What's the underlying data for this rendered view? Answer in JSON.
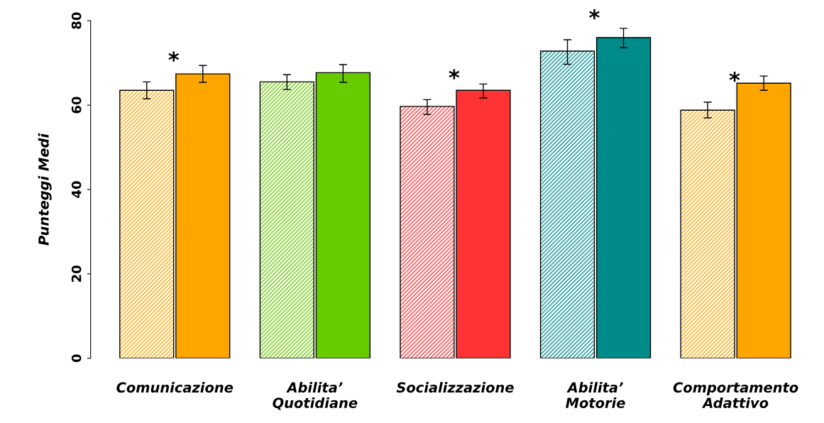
{
  "chart_data": {
    "type": "bar",
    "ylabel": "Punteggi Medi",
    "categories": [
      "Comunicazione",
      "Abilita’\nQuotidiane",
      "Socializzazione",
      "Abilita’\nMotorie",
      "Comportamento\nAdattivo"
    ],
    "series": [
      {
        "colors": [
          "#ffa500",
          "#66cc00",
          "#ff3333",
          "#008b8b",
          "#ffa500"
        ],
        "values": [
          63.5,
          65.5,
          59.7,
          72.8,
          58.8
        ],
        "value_labels": [
          "*",
          null,
          "*",
          "*",
          "*"
        ],
        "errors": [
          [
            61.5,
            65.5
          ],
          [
            63.7,
            67.2
          ],
          [
            57.8,
            61.3
          ],
          [
            69.7,
            75.5
          ],
          [
            57.0,
            60.7
          ]
        ]
      },
      {
        "colors": [
          "#ffa500",
          "#66cc00",
          "#ff3333",
          "#008b8b",
          "#ffa500"
        ],
        "values": [
          67.4,
          67.7,
          63.5,
          76.0,
          65.2
        ],
        "errors": [
          [
            65.4,
            69.4
          ],
          [
            65.4,
            69.6
          ],
          [
            61.7,
            65.0
          ],
          [
            73.6,
            78.2
          ],
          [
            63.5,
            66.9
          ]
        ]
      }
    ],
    "ylim": [
      0,
      80
    ],
    "yticks": [
      0,
      20,
      40,
      60,
      80
    ],
    "grid": false,
    "legend": false
  }
}
